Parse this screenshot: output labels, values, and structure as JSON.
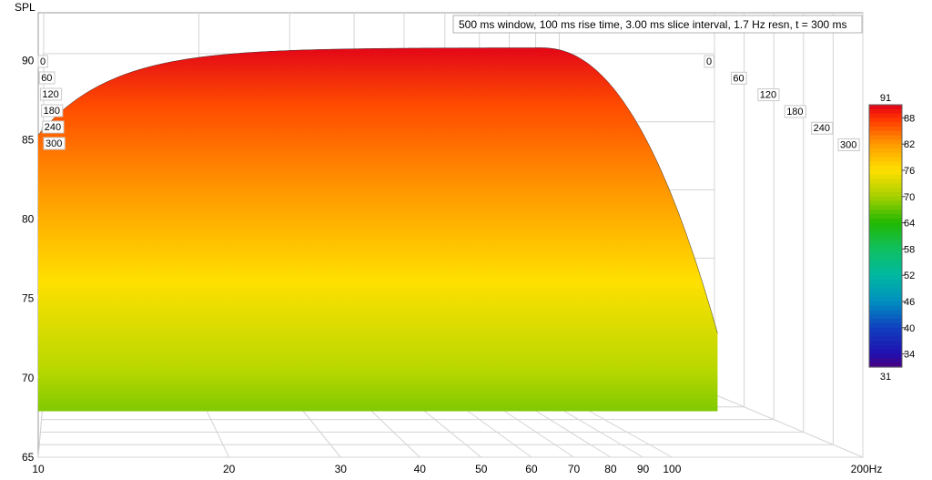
{
  "chart_data": {
    "type": "waterfall",
    "header": "500 ms window, 100 ms rise time, 3.00 ms slice interval, 1.7 Hz resn, t = 300 ms",
    "y_axis": {
      "label": "SPL",
      "ticks": [
        "90",
        "85",
        "80",
        "75",
        "70",
        "65"
      ],
      "range": [
        65,
        93
      ]
    },
    "x_axis": {
      "ticks": [
        "10",
        "20",
        "30",
        "40",
        "50",
        "60",
        "70",
        "80",
        "90",
        "100",
        "200Hz"
      ],
      "scale": "log",
      "range": [
        10,
        200
      ]
    },
    "time_axis": {
      "unit": "ms",
      "ticks_left": [
        "0",
        "60",
        "120",
        "180",
        "240",
        "300"
      ],
      "ticks_right": [
        "0",
        "60",
        "120",
        "180",
        "240",
        "300"
      ]
    },
    "colorbar": {
      "max_label": "91",
      "min_label": "31",
      "ticks": [
        "88",
        "82",
        "76",
        "70",
        "64",
        "58",
        "52",
        "46",
        "40",
        "34"
      ],
      "range": [
        31,
        91
      ]
    },
    "first_slice_peak_spl": 90.8,
    "decay_floor_spl": 68.3,
    "grid": true
  }
}
